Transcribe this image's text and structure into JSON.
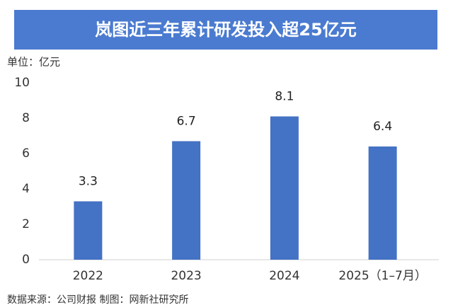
{
  "chart_data": {
    "type": "bar",
    "title": "岚图近三年累计研发投入超25亿元",
    "unit_label": "单位：亿元",
    "categories": [
      "2022",
      "2023",
      "2024",
      "2025（1–7月）"
    ],
    "values": [
      3.3,
      6.7,
      8.1,
      6.4
    ],
    "color": "#4472c4",
    "ylim": [
      0,
      10
    ],
    "yticks": [
      0,
      2,
      4,
      6,
      8,
      10
    ],
    "grid": false,
    "source": "数据来源：公司财报  制图：网新社研究所"
  }
}
